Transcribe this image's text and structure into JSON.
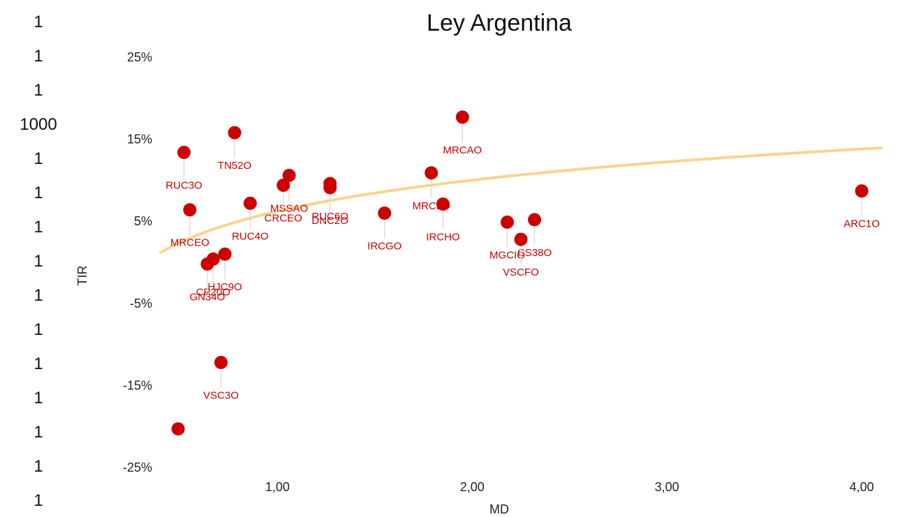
{
  "left_numbers": [
    "1",
    "1",
    "1",
    "1000",
    "1",
    "1",
    "1",
    "1",
    "1",
    "1",
    "1",
    "1",
    "1",
    "1",
    "1"
  ],
  "chart_data": {
    "type": "scatter",
    "title": "Ley Argentina",
    "xlabel": "MD",
    "ylabel": "TIR",
    "xlim": [
      0.4,
      4.1
    ],
    "ylim": [
      -0.25,
      0.25
    ],
    "x_ticks": [
      {
        "v": 1.0,
        "label": "1,00"
      },
      {
        "v": 2.0,
        "label": "2,00"
      },
      {
        "v": 3.0,
        "label": "3,00"
      },
      {
        "v": 4.0,
        "label": "4,00"
      }
    ],
    "y_ticks": [
      {
        "v": 0.25,
        "label": "25%"
      },
      {
        "v": 0.15,
        "label": "15%"
      },
      {
        "v": 0.05,
        "label": "5%"
      },
      {
        "v": -0.05,
        "label": "-5%"
      },
      {
        "v": -0.15,
        "label": "-15%"
      },
      {
        "v": -0.25,
        "label": "-25%"
      }
    ],
    "point_color": "#cc0000",
    "trend_color": "#f9d48f",
    "trend": {
      "type": "log",
      "a": 0.0622,
      "b": 0.0548
    },
    "points": [
      {
        "label": "RUC3O",
        "x": 0.52,
        "y": 0.134
      },
      {
        "label": "TN52O",
        "x": 0.78,
        "y": 0.158
      },
      {
        "label": "MRCAO",
        "x": 1.95,
        "y": 0.177
      },
      {
        "label": "MRCEO",
        "x": 0.55,
        "y": 0.064
      },
      {
        "label": "RUC4O",
        "x": 0.86,
        "y": 0.072
      },
      {
        "label": "MSSAO",
        "x": 1.06,
        "y": 0.106
      },
      {
        "label": "CRCEO",
        "x": 1.03,
        "y": 0.094
      },
      {
        "label": "RUC6O",
        "x": 1.27,
        "y": 0.096
      },
      {
        "label": "DNC2O",
        "x": 1.27,
        "y": 0.091
      },
      {
        "label": "MRCLO",
        "x": 1.79,
        "y": 0.109
      },
      {
        "label": "IRCHO",
        "x": 1.85,
        "y": 0.071
      },
      {
        "label": "IRCGO",
        "x": 1.55,
        "y": 0.06
      },
      {
        "label": "ARC1O",
        "x": 4.0,
        "y": 0.087
      },
      {
        "label": "MGCIO",
        "x": 2.18,
        "y": 0.049
      },
      {
        "label": "CS38O",
        "x": 2.32,
        "y": 0.052
      },
      {
        "label": "VSCFO",
        "x": 2.25,
        "y": 0.028
      },
      {
        "label": "HJC9O",
        "x": 0.73,
        "y": 0.01
      },
      {
        "label": "CP20O",
        "x": 0.67,
        "y": 0.004
      },
      {
        "label": "GN34O",
        "x": 0.64,
        "y": -0.002
      },
      {
        "label": "VSC3O",
        "x": 0.71,
        "y": -0.122
      },
      {
        "label": "",
        "x": 0.49,
        "y": -0.203
      }
    ]
  }
}
